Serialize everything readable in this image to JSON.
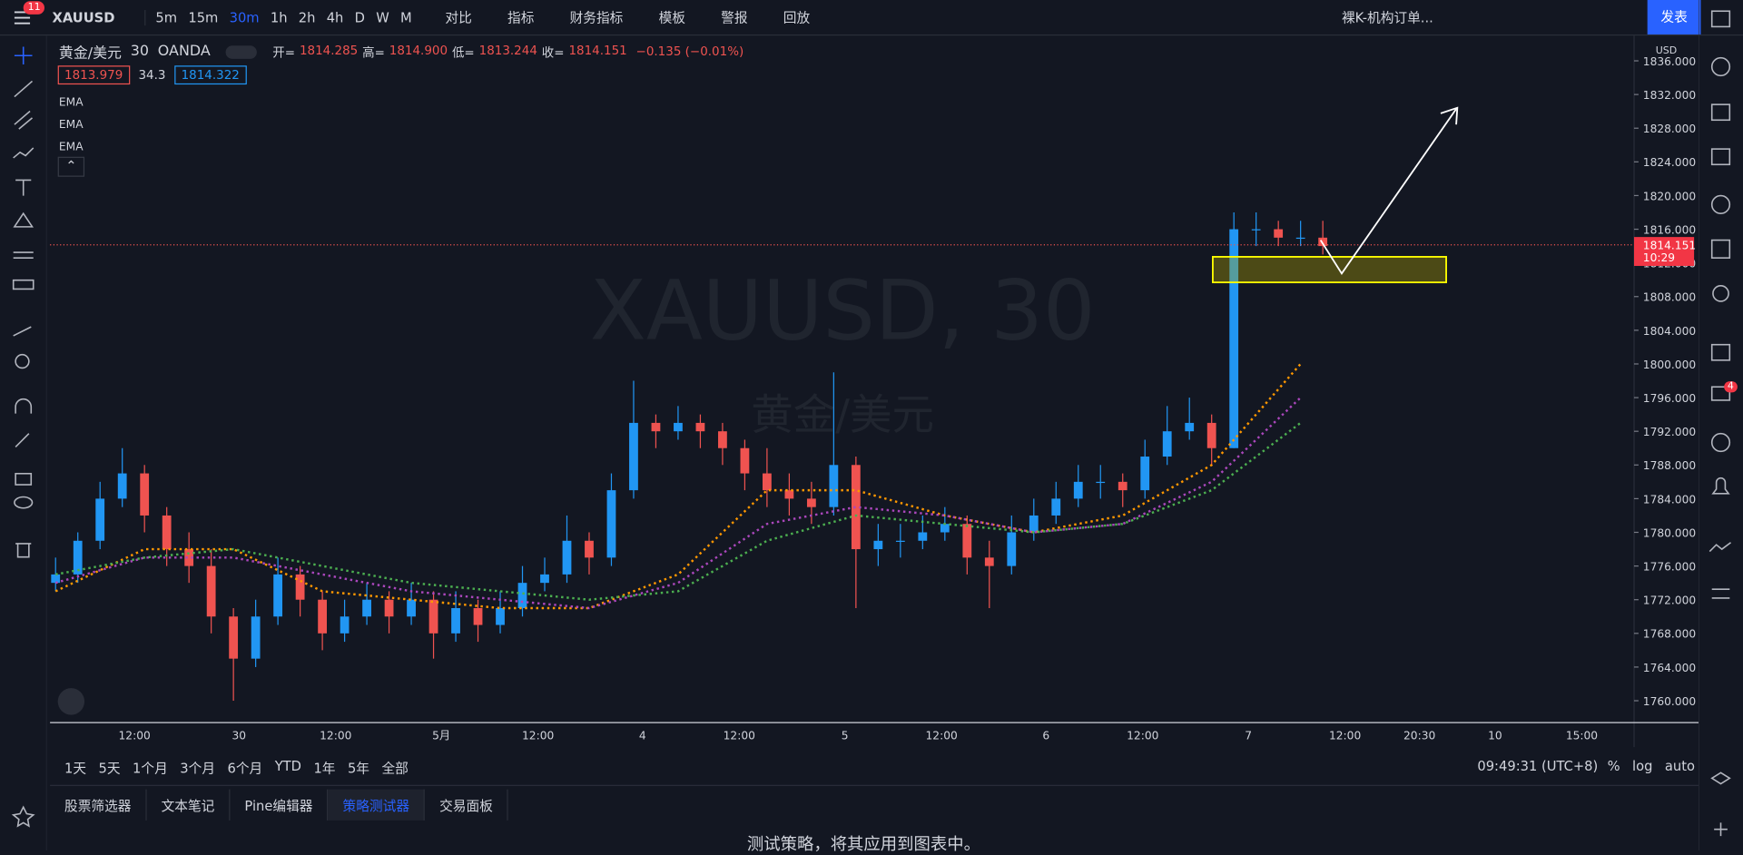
{
  "toolbar": {
    "symbol": "XAUUSD",
    "badge": "11",
    "intervals": [
      "5m",
      "15m",
      "30m",
      "1h",
      "2h",
      "4h",
      "D",
      "W",
      "M"
    ],
    "tools": [
      "对比",
      "指标",
      "财务指标",
      "模板",
      "警报",
      "回放"
    ],
    "layout_name": "裸K-机构订单...",
    "publish": "发表"
  },
  "legend": {
    "name": "黄金/美元",
    "interval": "30",
    "source": "OANDA",
    "ohlc": [
      {
        "label": "开=",
        "value": "1814.285"
      },
      {
        "label": "高=",
        "value": "1814.900"
      },
      {
        "label": "低=",
        "value": "1813.244"
      },
      {
        "label": "收=",
        "value": "1814.151"
      }
    ],
    "change": "−0.135 (−0.01%)",
    "bid": "1813.979",
    "spread": "34.3",
    "ask": "1814.322",
    "indicators": [
      "EMA",
      "EMA",
      "EMA"
    ]
  },
  "watermark": {
    "title": "XAUUSD, 30",
    "subtitle": "黄金/美元"
  },
  "chart": {
    "type": "candlestick",
    "currency": "USD",
    "up_color": "#2196f3",
    "down_color": "#ef5350",
    "ylim": [
      1757.4,
      1839
    ],
    "yticks": [
      {
        "value": 1760,
        "label": "1760.000"
      },
      {
        "value": 1764,
        "label": "1764.000"
      },
      {
        "value": 1768,
        "label": "1768.000"
      },
      {
        "value": 1772,
        "label": "1772.000"
      },
      {
        "value": 1776,
        "label": "1776.000"
      },
      {
        "value": 1780,
        "label": "1780.000"
      },
      {
        "value": 1784,
        "label": "1784.000"
      },
      {
        "value": 1788,
        "label": "1788.000"
      },
      {
        "value": 1792,
        "label": "1792.000"
      },
      {
        "value": 1796,
        "label": "1796.000"
      },
      {
        "value": 1800,
        "label": "1800.000"
      },
      {
        "value": 1804,
        "label": "1804.000"
      },
      {
        "value": 1808,
        "label": "1808.000"
      },
      {
        "value": 1812,
        "label": "1812.000"
      },
      {
        "value": 1816,
        "label": "1816.000"
      },
      {
        "value": 1820,
        "label": "1820.000"
      },
      {
        "value": 1824,
        "label": "1824.000"
      },
      {
        "value": 1828,
        "label": "1828.000"
      },
      {
        "value": 1832,
        "label": "1832.000"
      },
      {
        "value": 1836,
        "label": "1836.000"
      }
    ],
    "time_labels": [
      "12:00",
      "30",
      "12:00",
      "5月",
      "12:00",
      "4",
      "12:00",
      "5",
      "12:00",
      "6",
      "12:00",
      "7",
      "12:00",
      "20:30",
      "10",
      "15:00"
    ],
    "candles": [
      [
        1774,
        1777,
        1773,
        1775
      ],
      [
        1775,
        1780,
        1774,
        1779
      ],
      [
        1779,
        1786,
        1778,
        1784
      ],
      [
        1784,
        1790,
        1783,
        1787
      ],
      [
        1787,
        1788,
        1780,
        1782
      ],
      [
        1782,
        1783,
        1776,
        1778
      ],
      [
        1778,
        1780,
        1774,
        1776
      ],
      [
        1776,
        1778,
        1768,
        1770
      ],
      [
        1770,
        1771,
        1760,
        1765
      ],
      [
        1765,
        1772,
        1764,
        1770
      ],
      [
        1770,
        1777,
        1769,
        1775
      ],
      [
        1775,
        1776,
        1770,
        1772
      ],
      [
        1772,
        1773,
        1766,
        1768
      ],
      [
        1768,
        1772,
        1767,
        1770
      ],
      [
        1770,
        1774,
        1769,
        1772
      ],
      [
        1772,
        1773,
        1768,
        1770
      ],
      [
        1770,
        1774,
        1769,
        1772
      ],
      [
        1772,
        1773,
        1765,
        1768
      ],
      [
        1768,
        1773,
        1767,
        1771
      ],
      [
        1771,
        1772,
        1767,
        1769
      ],
      [
        1769,
        1773,
        1768,
        1771
      ],
      [
        1771,
        1776,
        1770,
        1774
      ],
      [
        1774,
        1777,
        1773,
        1775
      ],
      [
        1775,
        1782,
        1774,
        1779
      ],
      [
        1779,
        1780,
        1775,
        1777
      ],
      [
        1777,
        1787,
        1776,
        1785
      ],
      [
        1785,
        1798,
        1784,
        1793
      ],
      [
        1793,
        1794,
        1790,
        1792
      ],
      [
        1792,
        1795,
        1791,
        1793
      ],
      [
        1793,
        1794,
        1790,
        1792
      ],
      [
        1792,
        1793,
        1788,
        1790
      ],
      [
        1790,
        1791,
        1785,
        1787
      ],
      [
        1787,
        1790,
        1783,
        1785
      ],
      [
        1785,
        1787,
        1782,
        1784
      ],
      [
        1784,
        1786,
        1781,
        1783
      ],
      [
        1783,
        1799,
        1782,
        1788
      ],
      [
        1788,
        1789,
        1771,
        1778
      ],
      [
        1778,
        1781,
        1776,
        1779
      ],
      [
        1779,
        1781,
        1777,
        1779
      ],
      [
        1779,
        1782,
        1778,
        1780
      ],
      [
        1780,
        1783,
        1779,
        1781
      ],
      [
        1781,
        1782,
        1775,
        1777
      ],
      [
        1777,
        1779,
        1771,
        1776
      ],
      [
        1776,
        1782,
        1775,
        1780
      ],
      [
        1780,
        1784,
        1779,
        1782
      ],
      [
        1782,
        1786,
        1781,
        1784
      ],
      [
        1784,
        1788,
        1783,
        1786
      ],
      [
        1786,
        1788,
        1784,
        1786
      ],
      [
        1786,
        1787,
        1783,
        1785
      ],
      [
        1785,
        1791,
        1784,
        1789
      ],
      [
        1789,
        1795,
        1788,
        1792
      ],
      [
        1792,
        1796,
        1791,
        1793
      ],
      [
        1793,
        1794,
        1788,
        1790
      ],
      [
        1790,
        1818,
        1790,
        1816
      ],
      [
        1816,
        1818,
        1814,
        1816
      ],
      [
        1816,
        1817,
        1814,
        1815
      ],
      [
        1815,
        1817,
        1814,
        1815
      ],
      [
        1815,
        1817,
        1813,
        1814
      ]
    ],
    "ema": [
      {
        "color": "#ff9800",
        "values": [
          1773,
          1778,
          1778,
          1773,
          1772,
          1771,
          1771,
          1775,
          1785,
          1785,
          1782,
          1780,
          1782,
          1788,
          1800
        ]
      },
      {
        "color": "#ab47bc",
        "values": [
          1774,
          1777,
          1777,
          1775,
          1773,
          1772,
          1771,
          1774,
          1781,
          1783,
          1782,
          1780,
          1781,
          1786,
          1796
        ]
      },
      {
        "color": "#4caf50",
        "values": [
          1775,
          1777,
          1778,
          1776,
          1774,
          1773,
          1772,
          1773,
          1779,
          1782,
          1781,
          1780,
          1781,
          1785,
          1793
        ]
      }
    ],
    "last_price": 1814.151,
    "countdown": "10:29"
  },
  "bottom": {
    "ranges": [
      "1天",
      "5天",
      "1个月",
      "3个月",
      "6个月",
      "YTD",
      "1年",
      "5年",
      "全部"
    ],
    "clock": "09:49:31 (UTC+8)",
    "options": [
      "%",
      "log",
      "auto"
    ]
  },
  "panel": {
    "tabs": [
      "股票筛选器",
      "文本笔记",
      "Pine编辑器",
      "策略测试器",
      "交易面板"
    ],
    "message": "测试策略，将其应用到图表中。"
  },
  "sidebar_badge": "4"
}
